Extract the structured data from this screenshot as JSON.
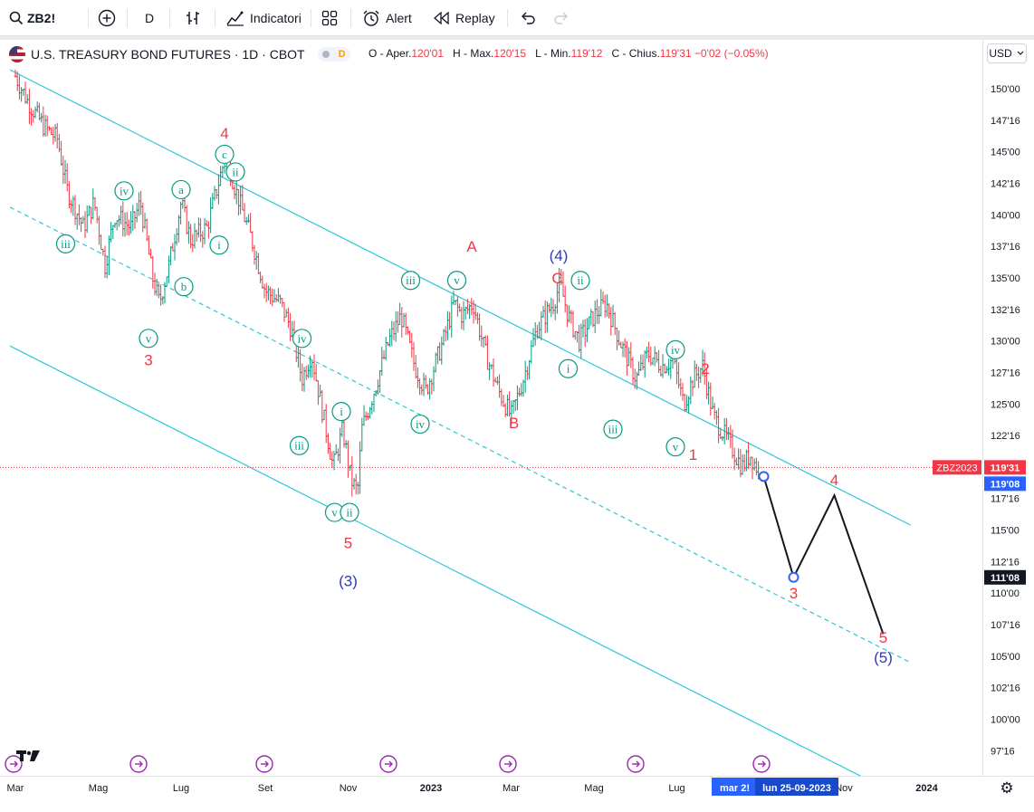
{
  "toolbar": {
    "symbol": "ZB2!",
    "interval": "D",
    "indicators_label": "Indicatori",
    "alert_label": "Alert",
    "replay_label": "Replay"
  },
  "legend": {
    "title": "U.S. TREASURY BOND FUTURES · 1D · CBOT",
    "badge": "D",
    "open_label": "O - Aper.",
    "open_value": "120'01",
    "high_label": "H - Max.",
    "high_value": "120'15",
    "low_label": "L - Min.",
    "low_value": "119'12",
    "close_label": "C - Chius.",
    "close_value": "119'31",
    "change_value": "−0'02",
    "change_pct": "(−0.05%)"
  },
  "currency": "USD",
  "colors": {
    "up": "#089981",
    "down": "#f23645",
    "channel": "#2fc6d8",
    "wave_green": "#089981",
    "wave_red": "#f23645",
    "wave_blue": "#2e3ab8",
    "projection": "#131722",
    "price_line": "#f23645",
    "crosshair_label": "#2962ff"
  },
  "chart_data": {
    "type": "ohlc",
    "interval": "1D",
    "yaxis_ticks": [
      "150'00",
      "147'16",
      "145'00",
      "142'16",
      "140'00",
      "137'16",
      "135'00",
      "132'16",
      "130'00",
      "127'16",
      "125'00",
      "122'16",
      "117'16",
      "115'00",
      "112'16",
      "110'00",
      "107'16",
      "105'00",
      "102'16",
      "100'00",
      "97'16"
    ],
    "ylim": [
      96,
      152
    ],
    "xaxis_ticks": [
      "Mar",
      "Mag",
      "Lug",
      "Set",
      "Nov",
      "2023",
      "Mar",
      "Mag",
      "Lug",
      "Nov",
      "2024"
    ],
    "last_price": {
      "symbol_label": "ZBZ2023",
      "value": "119'31",
      "price": 119.97
    },
    "crosshair": {
      "price_label": "111'08",
      "price": 111.25,
      "date_label": "lun 25-09-2023",
      "prev_date_label": "mar 2!"
    },
    "marker_price_label": "119'08",
    "series": [
      {
        "name": "price",
        "points": [
          [
            "2022-03-01",
            151
          ],
          [
            "2022-03-10",
            149
          ],
          [
            "2022-03-22",
            147
          ],
          [
            "2022-04-01",
            146
          ],
          [
            "2022-04-08",
            142
          ],
          [
            "2022-04-20",
            139
          ],
          [
            "2022-04-28",
            141
          ],
          [
            "2022-05-06",
            136
          ],
          [
            "2022-05-13",
            140
          ],
          [
            "2022-05-25",
            139
          ],
          [
            "2022-06-01",
            141
          ],
          [
            "2022-06-10",
            135
          ],
          [
            "2022-06-15",
            133
          ],
          [
            "2022-06-22",
            136
          ],
          [
            "2022-07-01",
            141
          ],
          [
            "2022-07-08",
            138
          ],
          [
            "2022-07-20",
            139
          ],
          [
            "2022-08-01",
            144
          ],
          [
            "2022-08-04",
            144.5
          ],
          [
            "2022-08-10",
            142
          ],
          [
            "2022-08-22",
            138
          ],
          [
            "2022-09-01",
            134
          ],
          [
            "2022-09-12",
            133
          ],
          [
            "2022-09-20",
            131
          ],
          [
            "2022-09-28",
            127
          ],
          [
            "2022-10-05",
            129
          ],
          [
            "2022-10-12",
            125
          ],
          [
            "2022-10-21",
            120
          ],
          [
            "2022-10-28",
            123
          ],
          [
            "2022-11-03",
            119
          ],
          [
            "2022-11-08",
            118
          ],
          [
            "2022-11-11",
            123
          ],
          [
            "2022-11-20",
            126
          ],
          [
            "2022-12-01",
            130
          ],
          [
            "2022-12-10",
            132
          ],
          [
            "2022-12-20",
            128
          ],
          [
            "2022-12-28",
            126
          ],
          [
            "2023-01-10",
            130
          ],
          [
            "2023-01-18",
            133
          ],
          [
            "2023-01-24",
            132
          ],
          [
            "2023-02-01",
            133
          ],
          [
            "2023-02-10",
            129
          ],
          [
            "2023-02-20",
            126
          ],
          [
            "2023-03-01",
            124
          ],
          [
            "2023-03-10",
            127
          ],
          [
            "2023-03-20",
            131
          ],
          [
            "2023-04-01",
            133
          ],
          [
            "2023-04-06",
            134.5
          ],
          [
            "2023-04-12",
            132
          ],
          [
            "2023-04-20",
            130
          ],
          [
            "2023-05-01",
            132
          ],
          [
            "2023-05-10",
            133
          ],
          [
            "2023-05-20",
            130
          ],
          [
            "2023-06-01",
            127
          ],
          [
            "2023-06-10",
            129
          ],
          [
            "2023-06-20",
            128
          ],
          [
            "2023-06-28",
            128.5
          ],
          [
            "2023-07-06",
            125
          ],
          [
            "2023-07-13",
            127
          ],
          [
            "2023-07-20",
            128
          ],
          [
            "2023-07-28",
            124
          ],
          [
            "2023-08-08",
            122
          ],
          [
            "2023-08-18",
            120
          ],
          [
            "2023-08-24",
            121
          ],
          [
            "2023-08-31",
            119.5
          ]
        ]
      },
      {
        "name": "projection",
        "points": [
          [
            "2023-09-03",
            119.25
          ],
          [
            "2023-09-25",
            111.25
          ],
          [
            "2023-10-25",
            117.75
          ],
          [
            "2023-11-30",
            106.75
          ]
        ]
      }
    ],
    "channels": [
      {
        "style": "solid",
        "from": [
          "2022-02-25",
          151.5
        ],
        "to": [
          "2023-12-20",
          115.4
        ]
      },
      {
        "style": "dashed",
        "from": [
          "2022-02-25",
          140.6
        ],
        "to": [
          "2023-12-20",
          104.5
        ]
      },
      {
        "style": "solid",
        "from": [
          "2022-02-25",
          129.6
        ],
        "to": [
          "2023-12-20",
          93.5
        ]
      }
    ],
    "annotations": [
      {
        "text": "4",
        "date": "2022-08-02",
        "price": 146.5,
        "color": "red"
      },
      {
        "text": "3",
        "date": "2022-06-07",
        "price": 128.5,
        "color": "red"
      },
      {
        "text": "5",
        "date": "2022-11-01",
        "price": 114.0,
        "color": "red"
      },
      {
        "text": "(3)",
        "date": "2022-11-01",
        "price": 111.0,
        "color": "blue"
      },
      {
        "text": "A",
        "date": "2023-01-31",
        "price": 137.5,
        "color": "red"
      },
      {
        "text": "B",
        "date": "2023-03-03",
        "price": 123.5,
        "color": "red"
      },
      {
        "text": "C",
        "date": "2023-04-04",
        "price": 135.0,
        "color": "red"
      },
      {
        "text": "(4)",
        "date": "2023-04-05",
        "price": 136.8,
        "color": "blue"
      },
      {
        "text": "2",
        "date": "2023-07-22",
        "price": 127.8,
        "color": "red"
      },
      {
        "text": "1",
        "date": "2023-07-13",
        "price": 121.0,
        "color": "red"
      },
      {
        "text": "3",
        "date": "2023-09-25",
        "price": 110.0,
        "color": "red"
      },
      {
        "text": "4",
        "date": "2023-10-25",
        "price": 119.0,
        "color": "red"
      },
      {
        "text": "5",
        "date": "2023-11-30",
        "price": 106.5,
        "color": "red"
      },
      {
        "text": "(5)",
        "date": "2023-11-30",
        "price": 104.9,
        "color": "blue"
      },
      {
        "text": "iii",
        "date": "2022-04-07",
        "price": 137.7,
        "color": "green",
        "circle": true
      },
      {
        "text": "iv",
        "date": "2022-05-20",
        "price": 141.9,
        "color": "green",
        "circle": true
      },
      {
        "text": "v",
        "date": "2022-06-07",
        "price": 130.2,
        "color": "green",
        "circle": true
      },
      {
        "text": "a",
        "date": "2022-07-01",
        "price": 142.0,
        "color": "green",
        "circle": true
      },
      {
        "text": "b",
        "date": "2022-07-03",
        "price": 134.3,
        "color": "green",
        "circle": true
      },
      {
        "text": "c",
        "date": "2022-08-02",
        "price": 144.8,
        "color": "green",
        "circle": true
      },
      {
        "text": "ii",
        "date": "2022-08-10",
        "price": 143.4,
        "color": "green",
        "circle": true
      },
      {
        "text": "i",
        "date": "2022-07-29",
        "price": 137.6,
        "color": "green",
        "circle": true
      },
      {
        "text": "iv",
        "date": "2022-09-28",
        "price": 130.2,
        "color": "green",
        "circle": true
      },
      {
        "text": "iii",
        "date": "2022-09-26",
        "price": 121.7,
        "color": "green",
        "circle": true
      },
      {
        "text": "i",
        "date": "2022-10-27",
        "price": 124.4,
        "color": "green",
        "circle": true
      },
      {
        "text": "v",
        "date": "2022-10-22",
        "price": 116.4,
        "color": "green",
        "circle": true
      },
      {
        "text": "ii",
        "date": "2022-11-02",
        "price": 116.4,
        "color": "green",
        "circle": true
      },
      {
        "text": "iii",
        "date": "2022-12-17",
        "price": 134.8,
        "color": "green",
        "circle": true
      },
      {
        "text": "v",
        "date": "2023-01-20",
        "price": 134.8,
        "color": "green",
        "circle": true
      },
      {
        "text": "iv",
        "date": "2022-12-24",
        "price": 123.4,
        "color": "green",
        "circle": true
      },
      {
        "text": "ii",
        "date": "2023-04-21",
        "price": 134.8,
        "color": "green",
        "circle": true
      },
      {
        "text": "i",
        "date": "2023-04-12",
        "price": 127.8,
        "color": "green",
        "circle": true
      },
      {
        "text": "iii",
        "date": "2023-05-15",
        "price": 123.0,
        "color": "green",
        "circle": true
      },
      {
        "text": "iv",
        "date": "2023-06-30",
        "price": 129.3,
        "color": "green",
        "circle": true
      },
      {
        "text": "v",
        "date": "2023-06-30",
        "price": 121.6,
        "color": "green",
        "circle": true
      }
    ]
  }
}
